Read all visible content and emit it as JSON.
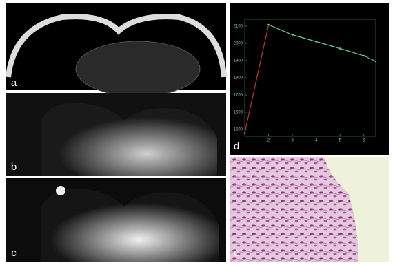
{
  "panels": {
    "a": "a",
    "b": "b",
    "c": "c",
    "d": "d",
    "e": "e"
  },
  "chart_data": {
    "type": "line",
    "xlim": [
      1,
      6.5
    ],
    "xticks": [
      2,
      3,
      4,
      5,
      6
    ],
    "ylim": [
      1460,
      2140
    ],
    "yticks": [
      1500,
      1600,
      1700,
      1800,
      1900,
      2000,
      2100
    ],
    "series": [
      {
        "color": "#c83232",
        "x": [
          1,
          2
        ],
        "values": [
          1480,
          2108
        ]
      },
      {
        "color": "#5fd08a",
        "x": [
          2,
          3,
          4,
          5,
          6,
          6.5
        ],
        "values": [
          2108,
          2050,
          2010,
          1970,
          1928,
          1896
        ]
      }
    ]
  }
}
